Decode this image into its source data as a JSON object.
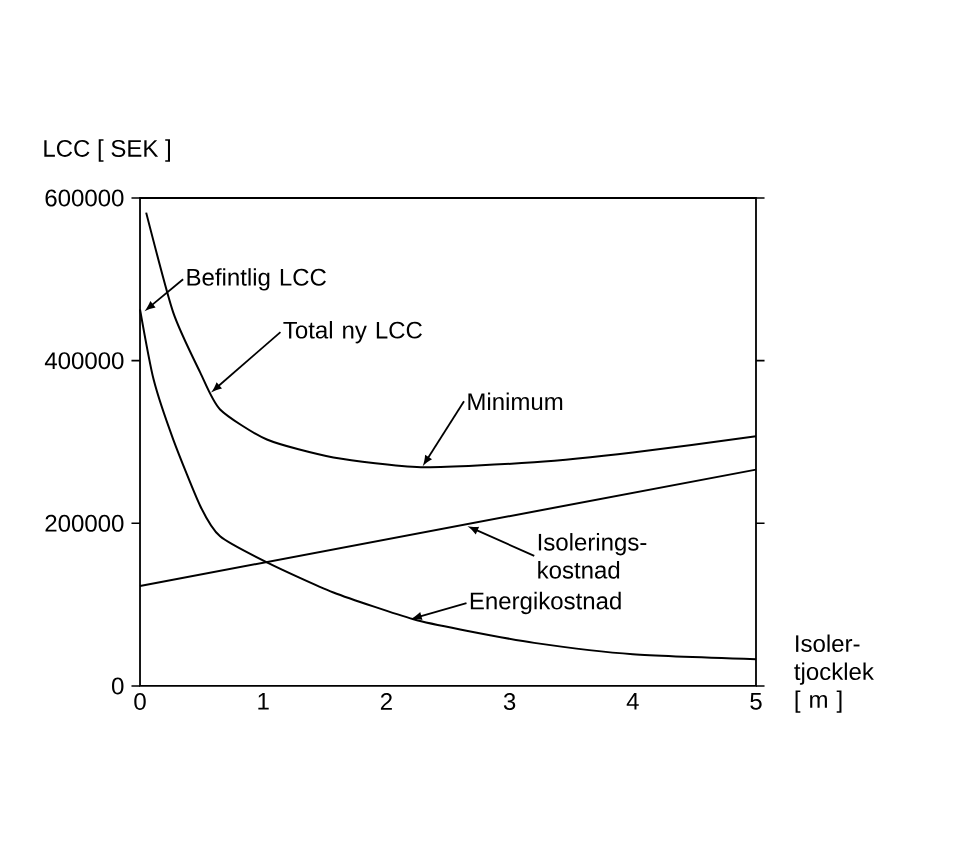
{
  "chart_data": {
    "type": "line",
    "ylabel": "LCC [ SEK ]",
    "xlabel": "Isoler-tjocklek [ m ]",
    "xlim": [
      0,
      5
    ],
    "xticks": [
      0,
      1,
      2,
      3,
      4,
      5
    ],
    "ylim": [
      0,
      600000
    ],
    "yticks": [
      0,
      200000,
      400000,
      600000
    ],
    "marker": "none",
    "line_style": "solid",
    "series": [
      {
        "color": "#000000",
        "x": [
          0.05,
          0.27,
          0.49,
          0.65,
          1.03,
          1.57,
          2.28,
          3.2,
          4.0,
          5
        ],
        "values": [
          582000,
          459000,
          385000,
          340000,
          303000,
          281000,
          269000,
          275000,
          287000,
          307000
        ]
      },
      {
        "color": "#000000",
        "x": [
          0,
          0.11,
          0.27,
          0.49,
          0.65,
          1.03,
          1.57,
          2.22,
          2.65,
          3.2,
          4.0,
          5
        ],
        "values": [
          463000,
          377000,
          303000,
          221000,
          184000,
          152000,
          115000,
          82000,
          68000,
          53000,
          39000,
          33000
        ]
      },
      {
        "color": "#000000",
        "x": [
          0,
          5
        ],
        "values": [
          123000,
          266000
        ]
      }
    ],
    "annotations": [
      {
        "text": "Befintlig LCC",
        "x": 0.03,
        "y": 460000
      },
      {
        "text": "Total ny LCC",
        "x": 0.57,
        "y": 360000
      },
      {
        "text": "Minimum",
        "x": 2.29,
        "y": 269000
      },
      {
        "text": "Isolerings-kostnad",
        "x": 2.65,
        "y": 197000
      },
      {
        "text": "Energikostnad",
        "x": 2.19,
        "y": 82000
      }
    ]
  }
}
